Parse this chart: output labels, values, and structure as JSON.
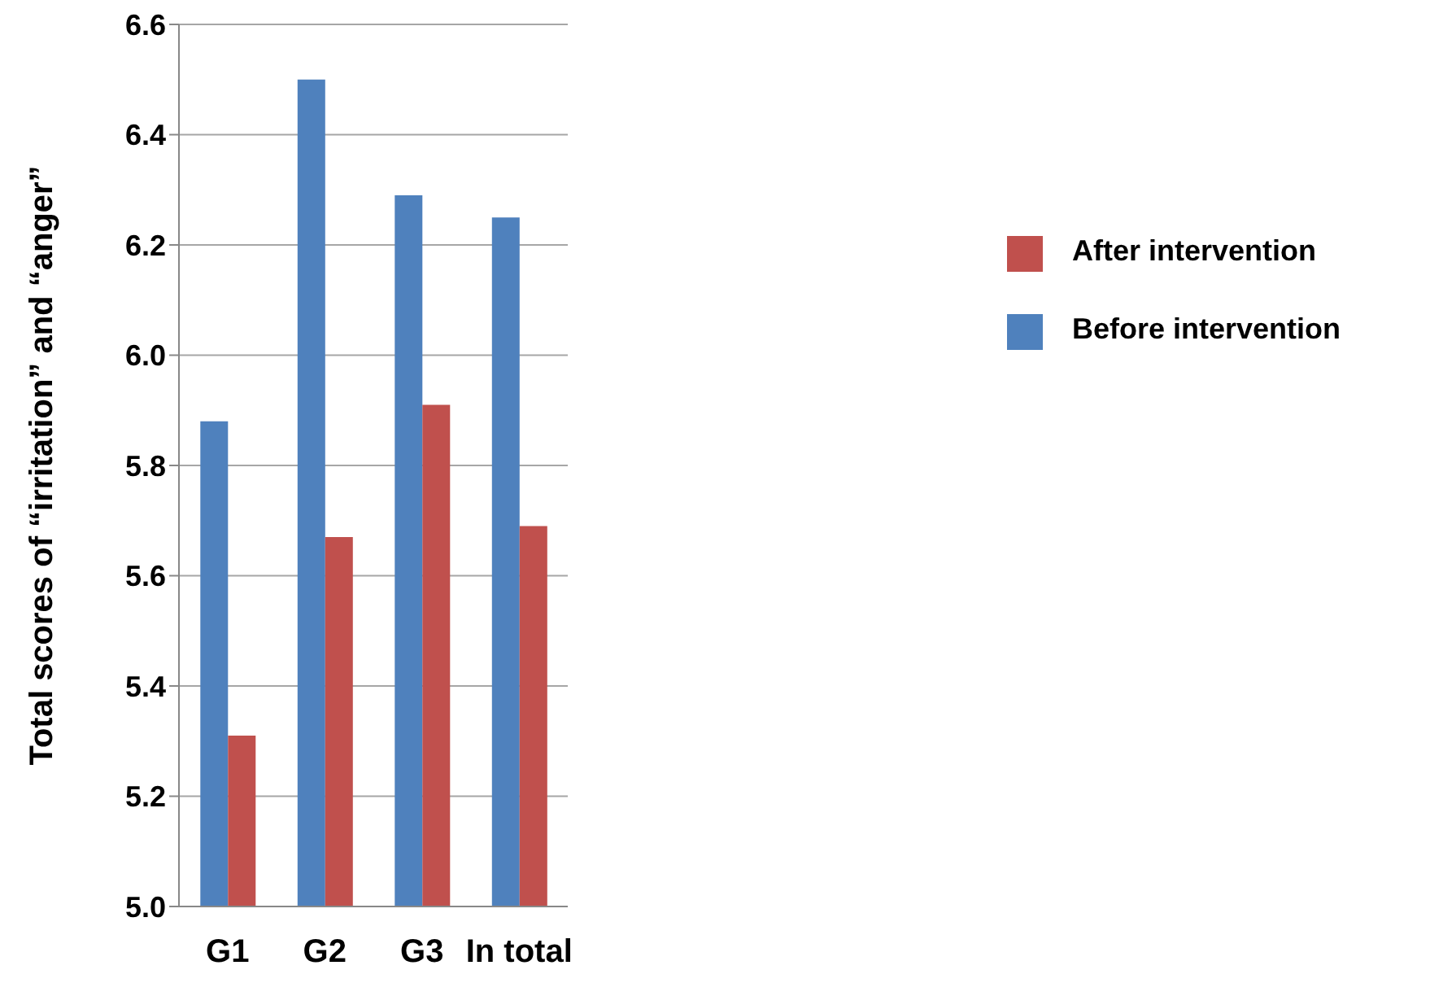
{
  "chart_data": {
    "type": "bar",
    "ylabel": "Total scores of “irritation” and “anger”",
    "categories": [
      "G1",
      "G2",
      "G3",
      "In total"
    ],
    "series": [
      {
        "name": "Before intervention",
        "color": "#4f81bd",
        "values": [
          5.88,
          6.5,
          6.29,
          6.25
        ]
      },
      {
        "name": "After intervention",
        "color": "#c0504d",
        "values": [
          5.31,
          5.67,
          5.91,
          5.69
        ]
      }
    ],
    "ylim": [
      5.0,
      6.6
    ],
    "yticks": [
      {
        "value": 5.0,
        "label": "5.0"
      },
      {
        "value": 5.2,
        "label": "5.2"
      },
      {
        "value": 5.4,
        "label": "5.4"
      },
      {
        "value": 5.6,
        "label": "5.6"
      },
      {
        "value": 5.8,
        "label": "5.8"
      },
      {
        "value": 6.0,
        "label": "6.0"
      },
      {
        "value": 6.2,
        "label": "6.2"
      },
      {
        "value": 6.4,
        "label": "6.4"
      },
      {
        "value": 6.6,
        "label": "6.6"
      }
    ],
    "grid": "y",
    "legend": "right"
  }
}
